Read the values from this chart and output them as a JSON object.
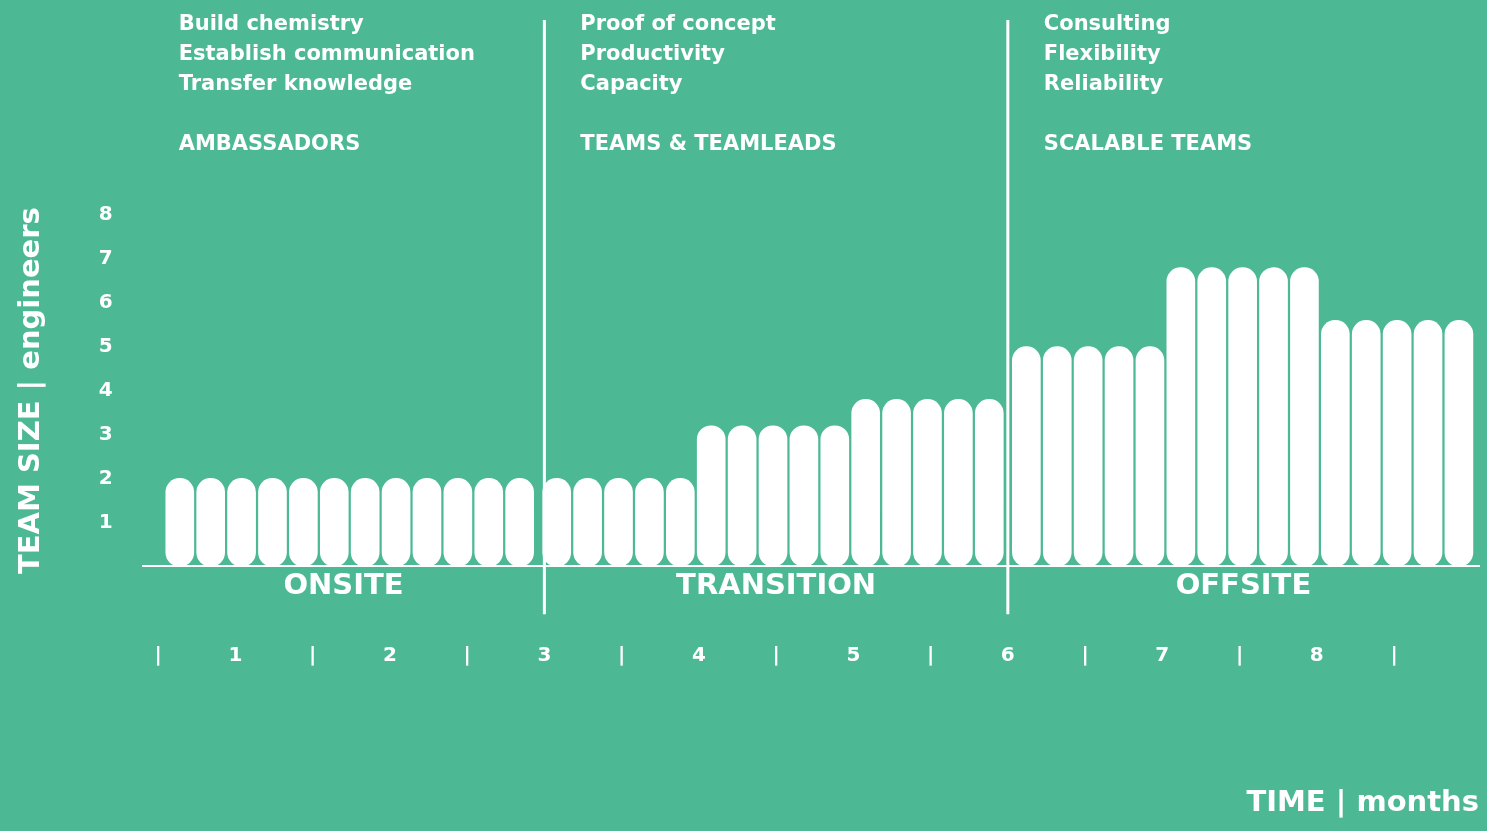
{
  "chart_data": {
    "type": "bar",
    "xlabel": "TIME | months",
    "ylabel": "TEAM SIZE | engineers",
    "x": [
      0.64,
      0.84,
      1.04,
      1.24,
      1.44,
      1.64,
      1.84,
      2.04,
      2.24,
      2.44,
      2.64,
      2.84,
      3.08,
      3.28,
      3.48,
      3.68,
      3.88,
      4.08,
      4.28,
      4.48,
      4.68,
      4.88,
      5.08,
      5.28,
      5.48,
      5.68,
      5.88,
      6.12,
      6.32,
      6.52,
      6.72,
      6.92,
      7.12,
      7.32,
      7.52,
      7.72,
      7.92,
      8.12,
      8.32,
      8.52,
      8.72,
      8.92
    ],
    "values": [
      2,
      2,
      2,
      2,
      2,
      2,
      2,
      2,
      2,
      2,
      2,
      2,
      2,
      2,
      2,
      2,
      2,
      3.2,
      3.2,
      3.2,
      3.2,
      3.2,
      3.8,
      3.8,
      3.8,
      3.8,
      3.8,
      5,
      5,
      5,
      5,
      5,
      6.8,
      6.8,
      6.8,
      6.8,
      6.8,
      5.6,
      5.6,
      5.6,
      5.6,
      5.6
    ],
    "color": "#ffffff",
    "xticks": [
      {
        "value": 0.5,
        "label": "|"
      },
      1,
      {
        "value": 1.5,
        "label": "|"
      },
      2,
      {
        "value": 2.5,
        "label": "|"
      },
      3,
      {
        "value": 3.5,
        "label": "|"
      },
      4,
      {
        "value": 4.5,
        "label": "|"
      },
      5,
      {
        "value": 5.5,
        "label": "|"
      },
      6,
      {
        "value": 6.5,
        "label": "|"
      },
      7,
      {
        "value": 7.5,
        "label": "|"
      },
      8,
      {
        "value": 8.5,
        "label": "|"
      }
    ],
    "xlim": [
      0.4,
      9.05
    ],
    "ylim": [
      0,
      8
    ],
    "yticks": [
      1,
      2,
      3,
      4,
      5,
      6,
      7,
      8
    ],
    "grid": false,
    "legend": false,
    "ref_lines": [
      {
        "axis": "x",
        "value": 3,
        "color": "#ffffff"
      },
      {
        "axis": "x",
        "value": 6,
        "color": "#ffffff"
      }
    ],
    "annotations": [
      "Build chemistry\nEstablish communication\nTransfer knowledge",
      "Proof of concept\nProductivity\nCapacity",
      "Consulting\nFlexibility\nReliability",
      "AMBASSADORS",
      "TEAMS & TEAMLEADS",
      "SCALABLE TEAMS",
      "ONSITE",
      "TRANSITION",
      "OFFSITE"
    ]
  }
}
